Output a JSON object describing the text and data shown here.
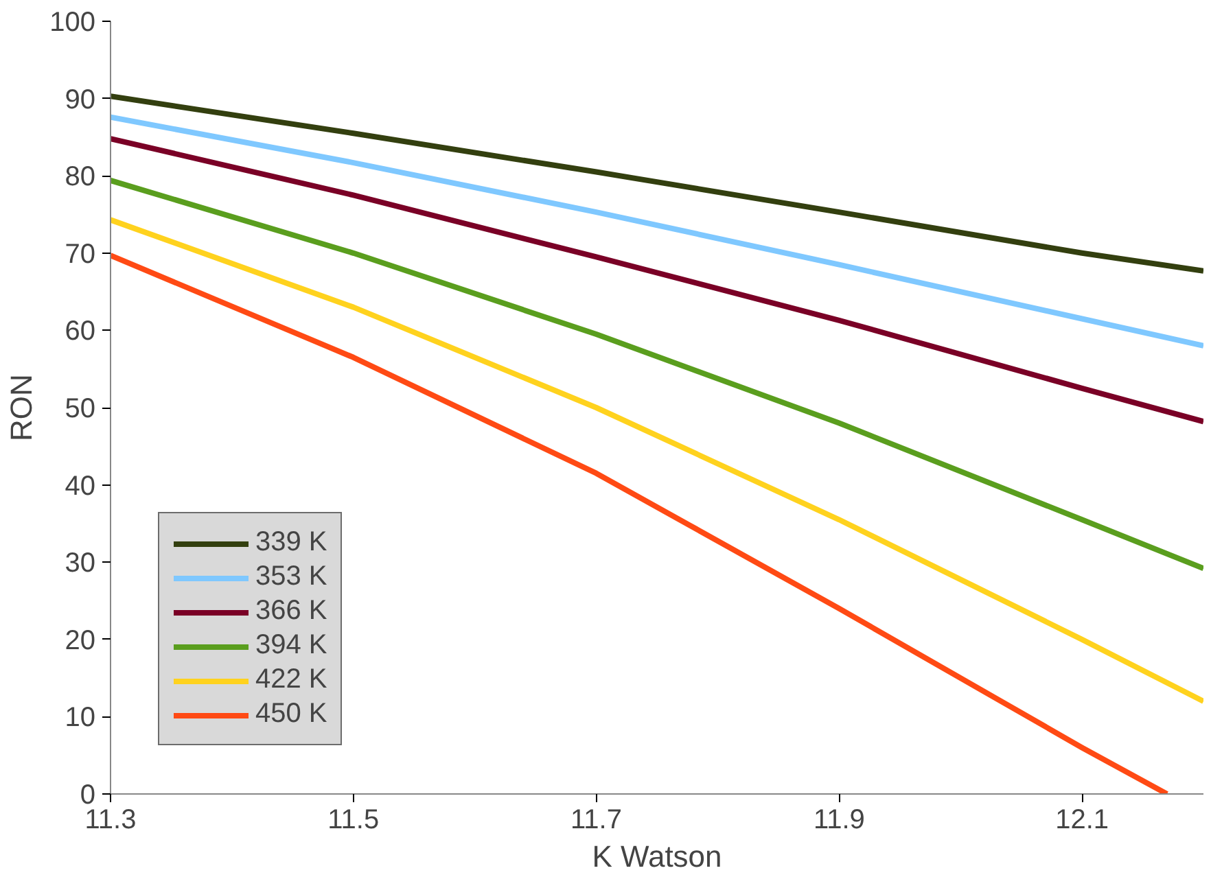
{
  "chart_data": {
    "type": "line",
    "xlabel": "K Watson",
    "ylabel": "RON",
    "xlim": [
      11.3,
      12.2
    ],
    "ylim": [
      0,
      100
    ],
    "xticks": [
      11.3,
      11.5,
      11.7,
      11.9,
      12.1
    ],
    "yticks": [
      0,
      10,
      20,
      30,
      40,
      50,
      60,
      70,
      80,
      90,
      100
    ],
    "grid": false,
    "legend": "bottom left",
    "marker": "none",
    "line_style": "solid",
    "series": [
      {
        "name": "339 K",
        "color": "#333f0f",
        "x": [
          11.3,
          11.5,
          11.7,
          11.9,
          12.1,
          12.2
        ],
        "values": [
          90.3,
          85.5,
          80.5,
          75.3,
          70,
          67.7
        ]
      },
      {
        "name": "353 K",
        "color": "#7fc8ff",
        "x": [
          11.3,
          11.5,
          11.7,
          11.9,
          12.1,
          12.2
        ],
        "values": [
          87.6,
          81.7,
          75.3,
          68.5,
          61.5,
          58
        ]
      },
      {
        "name": "366 K",
        "color": "#7a0026",
        "x": [
          11.3,
          11.5,
          11.7,
          11.9,
          12.1,
          12.2
        ],
        "values": [
          84.8,
          77.5,
          69.5,
          61.3,
          52.5,
          48.2
        ]
      },
      {
        "name": "394 K",
        "color": "#5a9e1e",
        "x": [
          11.3,
          11.5,
          11.7,
          11.9,
          12.1,
          12.2
        ],
        "values": [
          79.4,
          70,
          59.5,
          48,
          35.5,
          29.2
        ]
      },
      {
        "name": "422 K",
        "color": "#ffd21e",
        "x": [
          11.3,
          11.5,
          11.7,
          11.9,
          12.1,
          12.2
        ],
        "values": [
          74.3,
          63,
          50,
          35.5,
          20,
          12
        ]
      },
      {
        "name": "450 K",
        "color": "#ff4a14",
        "x": [
          11.3,
          11.5,
          11.7,
          11.9,
          12.1,
          12.17
        ],
        "values": [
          69.7,
          56.5,
          41.5,
          24,
          6,
          0
        ]
      }
    ]
  }
}
